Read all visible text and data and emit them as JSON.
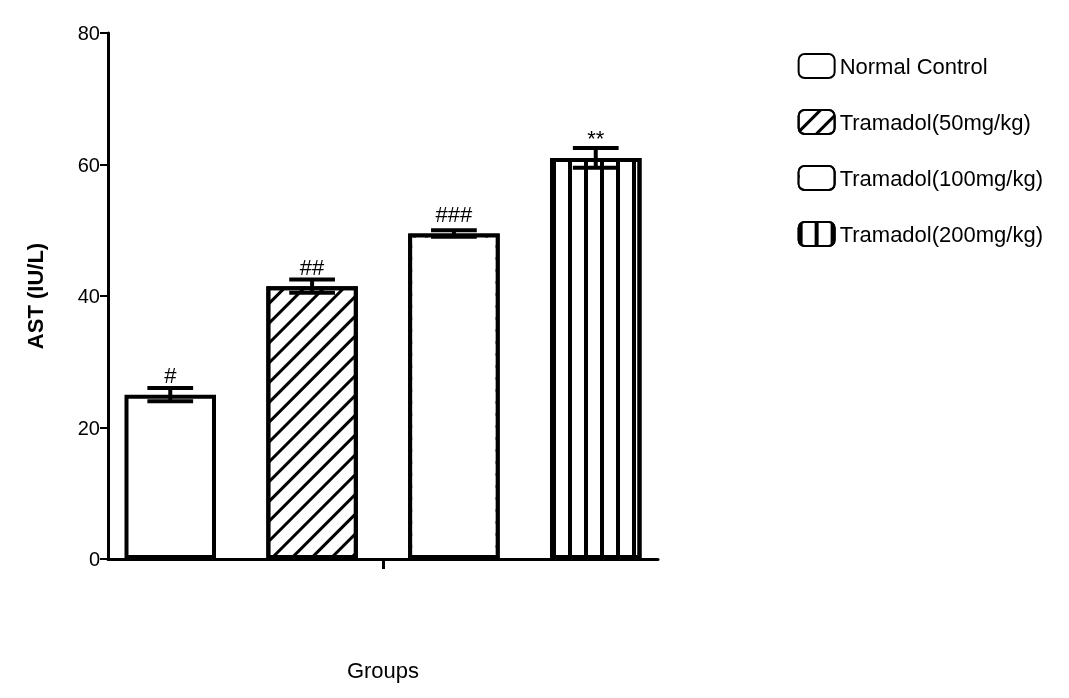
{
  "chart_data": {
    "type": "bar",
    "categories": [
      null
    ],
    "xlabel": "Groups",
    "ylabel": "AST (IU/L)",
    "series": [
      {
        "name": "Normal Control",
        "color": "#ffffff",
        "values": [
          25
        ],
        "errors": [
          1
        ]
      },
      {
        "name": "Tramadol(50mg/kg)",
        "color": "#ffffff",
        "values": [
          41.5
        ],
        "errors": [
          1
        ]
      },
      {
        "name": "Tramadol(100mg/kg)",
        "color": "#ffffff",
        "values": [
          49.5
        ],
        "errors": [
          0.5
        ]
      },
      {
        "name": "Tramadol(200mg/kg)",
        "color": "#ffffff",
        "values": [
          61
        ],
        "errors": [
          1.5
        ]
      }
    ],
    "annotations": [
      "#",
      "##",
      "###",
      "**"
    ],
    "ylim": [
      0,
      80
    ],
    "yticks": [
      0,
      20,
      40,
      60,
      80
    ],
    "grid": false,
    "legend": "top right"
  }
}
